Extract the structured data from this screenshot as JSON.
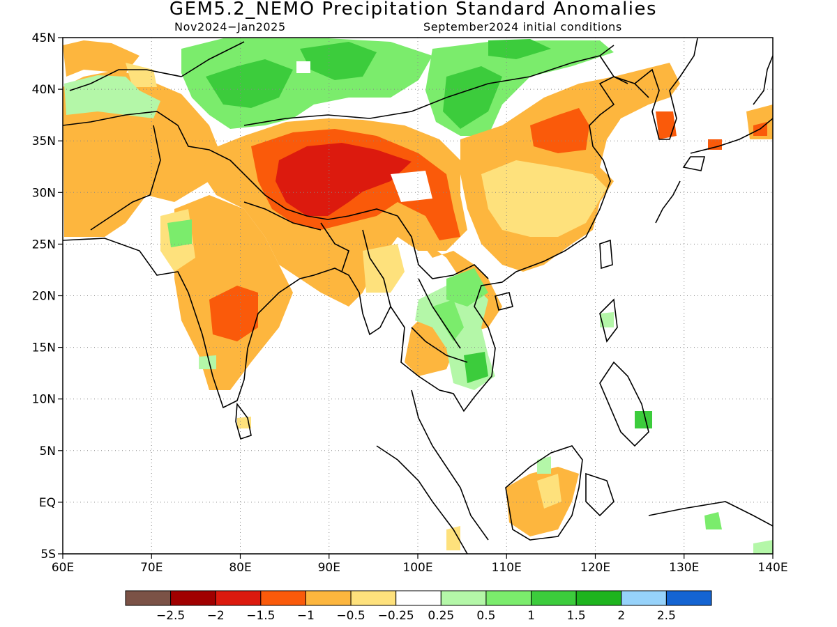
{
  "title": "GEM5.2_NEMO Precipitation Standard Anomalies",
  "subtitle_left": "Nov2024−Jan2025",
  "subtitle_right": "September2024 initial conditions",
  "map": {
    "lon_range": [
      60,
      140
    ],
    "lat_range": [
      -5,
      45
    ],
    "lon_ticks": [
      {
        "value": 60,
        "label": "60E"
      },
      {
        "value": 70,
        "label": "70E"
      },
      {
        "value": 80,
        "label": "80E"
      },
      {
        "value": 90,
        "label": "90E"
      },
      {
        "value": 100,
        "label": "100E"
      },
      {
        "value": 110,
        "label": "110E"
      },
      {
        "value": 120,
        "label": "120E"
      },
      {
        "value": 130,
        "label": "130E"
      },
      {
        "value": 140,
        "label": "140E"
      }
    ],
    "lat_ticks": [
      {
        "value": 45,
        "label": "45N"
      },
      {
        "value": 40,
        "label": "40N"
      },
      {
        "value": 35,
        "label": "35N"
      },
      {
        "value": 30,
        "label": "30N"
      },
      {
        "value": 25,
        "label": "25N"
      },
      {
        "value": 20,
        "label": "20N"
      },
      {
        "value": 15,
        "label": "15N"
      },
      {
        "value": 10,
        "label": "10N"
      },
      {
        "value": 5,
        "label": "5N"
      },
      {
        "value": 0,
        "label": "EQ"
      },
      {
        "value": -5,
        "label": "5S"
      }
    ],
    "grid": "dotted"
  },
  "colorbar": {
    "colors": [
      "#7b5246",
      "#a00000",
      "#dc1a0e",
      "#fa5a0a",
      "#fdb63e",
      "#fee17c",
      "#ffffff",
      "#b4f7a8",
      "#7bec6c",
      "#3ccc3c",
      "#1eb41e",
      "#96d2fa",
      "#1464d2"
    ],
    "labels": [
      "−2.5",
      "−2",
      "−1.5",
      "−1",
      "−0.5",
      "−0.25",
      "0.25",
      "0.5",
      "1",
      "1.5",
      "2",
      "2.5"
    ]
  }
}
